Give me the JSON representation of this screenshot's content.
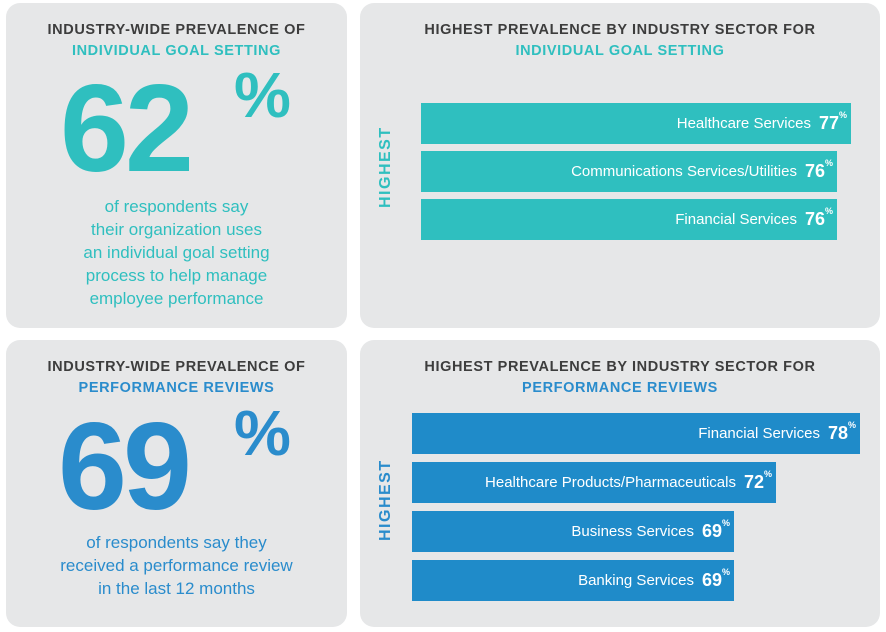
{
  "panel1": {
    "heading_line1": "INDUSTRY-WIDE PREVALENCE OF",
    "heading_line2": "INDIVIDUAL GOAL SETTING",
    "big_number": "62",
    "big_pct": "%",
    "desc_lines": [
      "of respondents say",
      "their organization uses",
      "an individual goal setting",
      "process to help manage",
      "employee performance"
    ]
  },
  "panel3": {
    "heading_line1": "INDUSTRY-WIDE PREVALENCE OF",
    "heading_line2": "PERFORMANCE REVIEWS",
    "big_number": "69",
    "big_pct": "%",
    "desc_lines": [
      "of respondents say they",
      "received a performance review",
      "in the last 12 months"
    ]
  },
  "colors": {
    "teal": "#2fbfbf",
    "blue": "#1f8bc9",
    "panel_bg": "#e6e7e8",
    "heading_dark": "#3d3d3d"
  },
  "chart_data": [
    {
      "type": "bar",
      "orientation": "horizontal",
      "title_line1": "HIGHEST PREVALENCE BY INDUSTRY SECTOR FOR",
      "title_line2": "INDIVIDUAL GOAL SETTING",
      "axis_label": "HIGHEST",
      "categories": [
        "Healthcare Services",
        "Communications Services/Utilities",
        "Financial Services"
      ],
      "values": [
        77,
        76,
        76
      ],
      "value_suffix": "%"
    },
    {
      "type": "bar",
      "orientation": "horizontal",
      "title_line1": "HIGHEST PREVALENCE BY INDUSTRY SECTOR FOR",
      "title_line2": "PERFORMANCE REVIEWS",
      "axis_label": "HIGHEST",
      "categories": [
        "Financial Services",
        "Healthcare Products/Pharmaceuticals",
        "Business Services",
        "Banking Services"
      ],
      "values": [
        78,
        72,
        69,
        69
      ],
      "value_suffix": "%"
    }
  ]
}
